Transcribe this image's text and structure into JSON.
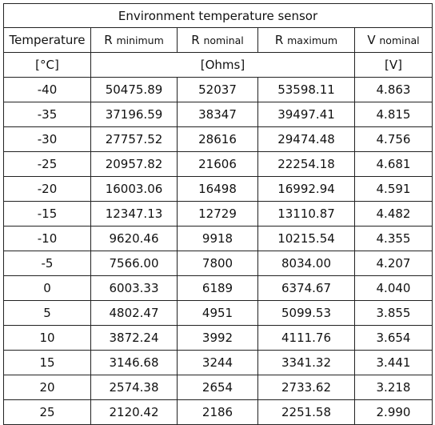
{
  "table": {
    "title": "Environment temperature sensor",
    "headers": [
      {
        "main": "Temperature",
        "sub": ""
      },
      {
        "main": "R",
        "sub": "minimum"
      },
      {
        "main": "R",
        "sub": "nominal"
      },
      {
        "main": "R",
        "sub": "maximum"
      },
      {
        "main": "V",
        "sub": "nominal"
      }
    ],
    "units": {
      "temperature": "[°C]",
      "resistance": "[Ohms]",
      "voltage": "[V]"
    },
    "rows": [
      [
        "-40",
        "50475.89",
        "52037",
        "53598.11",
        "4.863"
      ],
      [
        "-35",
        "37196.59",
        "38347",
        "39497.41",
        "4.815"
      ],
      [
        "-30",
        "27757.52",
        "28616",
        "29474.48",
        "4.756"
      ],
      [
        "-25",
        "20957.82",
        "21606",
        "22254.18",
        "4.681"
      ],
      [
        "-20",
        "16003.06",
        "16498",
        "16992.94",
        "4.591"
      ],
      [
        "-15",
        "12347.13",
        "12729",
        "13110.87",
        "4.482"
      ],
      [
        "-10",
        "9620.46",
        "9918",
        "10215.54",
        "4.355"
      ],
      [
        "-5",
        "7566.00",
        "7800",
        "8034.00",
        "4.207"
      ],
      [
        "0",
        "6003.33",
        "6189",
        "6374.67",
        "4.040"
      ],
      [
        "5",
        "4802.47",
        "4951",
        "5099.53",
        "3.855"
      ],
      [
        "10",
        "3872.24",
        "3992",
        "4111.76",
        "3.654"
      ],
      [
        "15",
        "3146.68",
        "3244",
        "3341.32",
        "3.441"
      ],
      [
        "20",
        "2574.38",
        "2654",
        "2733.62",
        "3.218"
      ],
      [
        "25",
        "2120.42",
        "2186",
        "2251.58",
        "2.990"
      ]
    ]
  }
}
